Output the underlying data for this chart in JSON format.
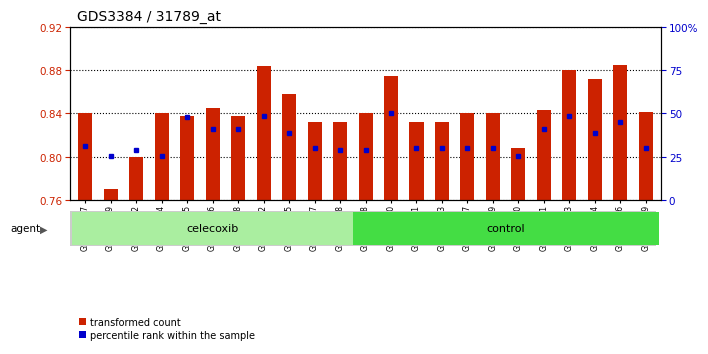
{
  "title": "GDS3384 / 31789_at",
  "samples": [
    "GSM283127",
    "GSM283129",
    "GSM283132",
    "GSM283134",
    "GSM283135",
    "GSM283136",
    "GSM283138",
    "GSM283142",
    "GSM283145",
    "GSM283147",
    "GSM283148",
    "GSM283128",
    "GSM283130",
    "GSM283131",
    "GSM283133",
    "GSM283137",
    "GSM283139",
    "GSM283140",
    "GSM283141",
    "GSM283143",
    "GSM283144",
    "GSM283146",
    "GSM283149"
  ],
  "transformed_count": [
    0.84,
    0.77,
    0.8,
    0.84,
    0.838,
    0.845,
    0.838,
    0.884,
    0.858,
    0.832,
    0.832,
    0.84,
    0.875,
    0.832,
    0.832,
    0.84,
    0.84,
    0.808,
    0.843,
    0.88,
    0.872,
    0.885,
    0.841
  ],
  "percentile_rank": [
    0.81,
    0.801,
    0.806,
    0.801,
    0.837,
    0.826,
    0.826,
    0.838,
    0.822,
    0.808,
    0.806,
    0.806,
    0.84,
    0.808,
    0.808,
    0.808,
    0.808,
    0.801,
    0.826,
    0.838,
    0.822,
    0.832,
    0.808
  ],
  "celecoxib_count": 11,
  "control_count": 12,
  "ylim_left": [
    0.76,
    0.92
  ],
  "ylim_right": [
    0,
    100
  ],
  "y_ticks_left": [
    0.76,
    0.8,
    0.84,
    0.88,
    0.92
  ],
  "y_ticks_right": [
    0,
    25,
    50,
    75,
    100
  ],
  "bar_color": "#cc2200",
  "dot_color": "#0000cc",
  "celecoxib_bg": "#aaeea0",
  "control_bg": "#44dd44",
  "agent_label": "agent",
  "celecoxib_label": "celecoxib",
  "control_label": "control",
  "legend_red": "transformed count",
  "legend_blue": "percentile rank within the sample"
}
